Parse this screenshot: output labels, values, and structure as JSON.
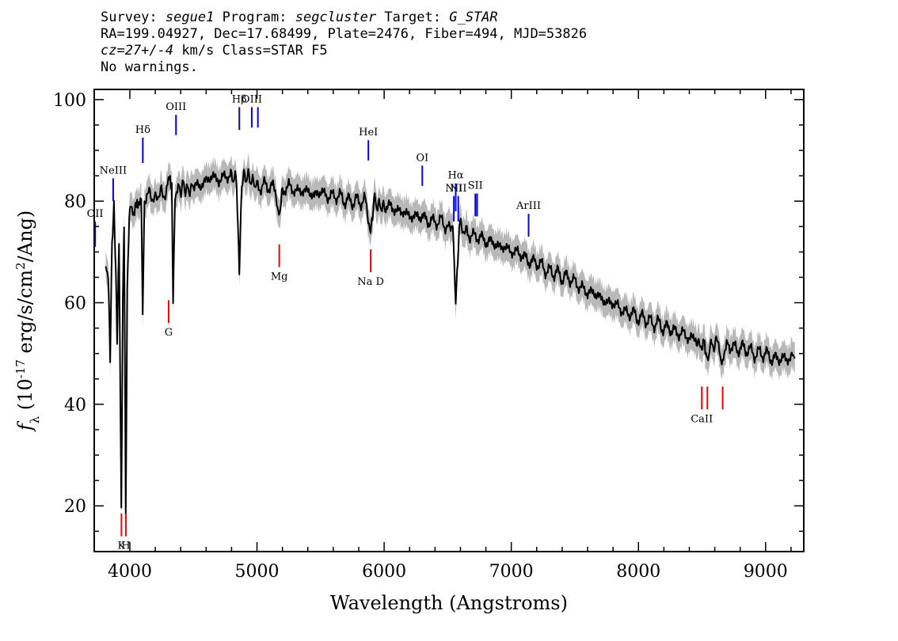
{
  "header": {
    "survey_label": "Survey:",
    "survey": "segue1",
    "program_label": "Program:",
    "program": "segcluster",
    "target_label": "Target:",
    "target": "G_STAR",
    "line2": "RA=199.04927, Dec=17.68499, Plate=2476, Fiber=494, MJD=53826",
    "cz": "cz=27+/-4",
    "cz_rest": " km/s Class=STAR F5",
    "line4": "No warnings."
  },
  "chart_data": {
    "type": "line",
    "xlabel": "Wavelength (Angstroms)",
    "ylabel": "f_λ (10^-17 erg/s/cm^2/Ang)",
    "xlim": [
      3720,
      9300
    ],
    "ylim": [
      11,
      102
    ],
    "x_ticks": [
      4000,
      5000,
      6000,
      7000,
      8000,
      9000
    ],
    "x_tick_labels": [
      "4000",
      "5000",
      "6000",
      "7000",
      "8000",
      "9000"
    ],
    "y_ticks": [
      20,
      40,
      60,
      80,
      100
    ],
    "y_tick_labels": [
      "20",
      "40",
      "60",
      "80",
      "100"
    ],
    "grid": false,
    "series": [
      {
        "name": "flux",
        "color": "#000000",
        "points": [
          [
            3810,
            68
          ],
          [
            3830,
            66
          ],
          [
            3845,
            48
          ],
          [
            3860,
            72
          ],
          [
            3875,
            80
          ],
          [
            3890,
            65
          ],
          [
            3900,
            52
          ],
          [
            3915,
            72
          ],
          [
            3933,
            20
          ],
          [
            3945,
            60
          ],
          [
            3955,
            76
          ],
          [
            3968,
            20
          ],
          [
            3980,
            62
          ],
          [
            3995,
            78
          ],
          [
            4010,
            80
          ],
          [
            4030,
            78
          ],
          [
            4050,
            80
          ],
          [
            4070,
            79
          ],
          [
            4090,
            80
          ],
          [
            4101,
            58
          ],
          [
            4115,
            80
          ],
          [
            4140,
            82
          ],
          [
            4170,
            81
          ],
          [
            4200,
            80
          ],
          [
            4230,
            82
          ],
          [
            4260,
            81
          ],
          [
            4290,
            82
          ],
          [
            4310,
            84
          ],
          [
            4330,
            82
          ],
          [
            4340,
            60
          ],
          [
            4355,
            82
          ],
          [
            4380,
            82
          ],
          [
            4420,
            83
          ],
          [
            4460,
            82
          ],
          [
            4500,
            83
          ],
          [
            4550,
            83
          ],
          [
            4600,
            84
          ],
          [
            4650,
            85
          ],
          [
            4700,
            84
          ],
          [
            4750,
            85
          ],
          [
            4800,
            85
          ],
          [
            4840,
            84
          ],
          [
            4861,
            66
          ],
          [
            4880,
            84
          ],
          [
            4920,
            85
          ],
          [
            4960,
            84
          ],
          [
            5000,
            83
          ],
          [
            5050,
            83
          ],
          [
            5100,
            83
          ],
          [
            5150,
            82
          ],
          [
            5173,
            76
          ],
          [
            5200,
            82
          ],
          [
            5250,
            83
          ],
          [
            5300,
            82
          ],
          [
            5350,
            82
          ],
          [
            5400,
            82
          ],
          [
            5450,
            81
          ],
          [
            5500,
            82
          ],
          [
            5550,
            81
          ],
          [
            5600,
            81
          ],
          [
            5650,
            81
          ],
          [
            5700,
            80
          ],
          [
            5750,
            80
          ],
          [
            5800,
            80
          ],
          [
            5850,
            80
          ],
          [
            5893,
            74
          ],
          [
            5920,
            80
          ],
          [
            5960,
            79
          ],
          [
            6000,
            79
          ],
          [
            6050,
            79
          ],
          [
            6100,
            78
          ],
          [
            6150,
            78
          ],
          [
            6200,
            77
          ],
          [
            6250,
            77
          ],
          [
            6300,
            77
          ],
          [
            6350,
            76
          ],
          [
            6400,
            76
          ],
          [
            6450,
            76
          ],
          [
            6500,
            75
          ],
          [
            6540,
            75
          ],
          [
            6563,
            60
          ],
          [
            6590,
            75
          ],
          [
            6650,
            74
          ],
          [
            6700,
            73
          ],
          [
            6750,
            73
          ],
          [
            6800,
            72
          ],
          [
            6850,
            72
          ],
          [
            6900,
            71
          ],
          [
            6950,
            71
          ],
          [
            7000,
            70
          ],
          [
            7050,
            70
          ],
          [
            7100,
            69
          ],
          [
            7150,
            68
          ],
          [
            7200,
            68
          ],
          [
            7250,
            67
          ],
          [
            7300,
            66
          ],
          [
            7350,
            66
          ],
          [
            7400,
            65
          ],
          [
            7450,
            65
          ],
          [
            7500,
            64
          ],
          [
            7550,
            63
          ],
          [
            7600,
            62
          ],
          [
            7650,
            62
          ],
          [
            7700,
            61
          ],
          [
            7750,
            60
          ],
          [
            7800,
            60
          ],
          [
            7850,
            59
          ],
          [
            7900,
            58
          ],
          [
            7950,
            58
          ],
          [
            8000,
            57
          ],
          [
            8050,
            57
          ],
          [
            8100,
            56
          ],
          [
            8150,
            56
          ],
          [
            8200,
            55
          ],
          [
            8250,
            55
          ],
          [
            8300,
            54
          ],
          [
            8350,
            54
          ],
          [
            8400,
            53
          ],
          [
            8450,
            53
          ],
          [
            8498,
            51
          ],
          [
            8520,
            53
          ],
          [
            8542,
            48
          ],
          [
            8570,
            52
          ],
          [
            8600,
            52
          ],
          [
            8630,
            52
          ],
          [
            8662,
            48
          ],
          [
            8700,
            52
          ],
          [
            8750,
            51
          ],
          [
            8800,
            51
          ],
          [
            8850,
            51
          ],
          [
            8900,
            50
          ],
          [
            8950,
            50
          ],
          [
            9000,
            50
          ],
          [
            9050,
            49
          ],
          [
            9100,
            49
          ],
          [
            9150,
            49
          ],
          [
            9200,
            49
          ],
          [
            9230,
            49
          ]
        ]
      }
    ],
    "emission_lines": [
      {
        "label": "OII",
        "x": 3727,
        "y_bottom": 71,
        "y_top": 76
      },
      {
        "label": "NeIII",
        "x": 3869,
        "y_bottom": 80,
        "y_top": 84.5
      },
      {
        "label": "Hδ",
        "x": 4102,
        "y_bottom": 87.5,
        "y_top": 92.5
      },
      {
        "label": "OIII",
        "x": 4363,
        "y_bottom": 93,
        "y_top": 97
      },
      {
        "label": "Hβ",
        "x": 4861,
        "y_bottom": 94,
        "y_top": 98.5
      },
      {
        "label": "OIII",
        "x": 4959,
        "y_bottom": 94.5,
        "y_top": 98.5
      },
      {
        "label": "",
        "x": 5007,
        "y_bottom": 94.5,
        "y_top": 98.5
      },
      {
        "label": "HeI",
        "x": 5876,
        "y_bottom": 88,
        "y_top": 92
      },
      {
        "label": "OI",
        "x": 6300,
        "y_bottom": 83,
        "y_top": 87
      },
      {
        "label": "NII",
        "x": 6548,
        "y_bottom": 76,
        "y_top": 81
      },
      {
        "label": "Hα",
        "x": 6563,
        "y_bottom": 78,
        "y_top": 83.5
      },
      {
        "label": "NII",
        "x": 6583,
        "y_bottom": 76,
        "y_top": 81
      },
      {
        "label": "SII",
        "x": 6717,
        "y_bottom": 77,
        "y_top": 81.5
      },
      {
        "label": "",
        "x": 6731,
        "y_bottom": 77,
        "y_top": 81.5
      },
      {
        "label": "ArIII",
        "x": 7136,
        "y_bottom": 73,
        "y_top": 77.5
      }
    ],
    "absorption_lines": [
      {
        "label": "K",
        "x": 3934,
        "y_bottom": 14,
        "y_top": 18.5
      },
      {
        "label": "H",
        "x": 3969,
        "y_bottom": 14,
        "y_top": 18.5
      },
      {
        "label": "G",
        "x": 4305,
        "y_bottom": 56,
        "y_top": 60.5
      },
      {
        "label": "Mg",
        "x": 5175,
        "y_bottom": 67,
        "y_top": 71.5
      },
      {
        "label": "Na D",
        "x": 5894,
        "y_bottom": 66,
        "y_top": 70.5
      },
      {
        "label": "CaII",
        "x": 8498,
        "y_bottom": 39,
        "y_top": 43.5
      },
      {
        "label": "",
        "x": 8542,
        "y_bottom": 39,
        "y_top": 43.5
      },
      {
        "label": "",
        "x": 8662,
        "y_bottom": 39,
        "y_top": 43.5
      }
    ],
    "colors": {
      "flux": "#000000",
      "error_band": "#b8b8b8",
      "emission": "#0000ff",
      "absorption": "#ff0000"
    }
  }
}
